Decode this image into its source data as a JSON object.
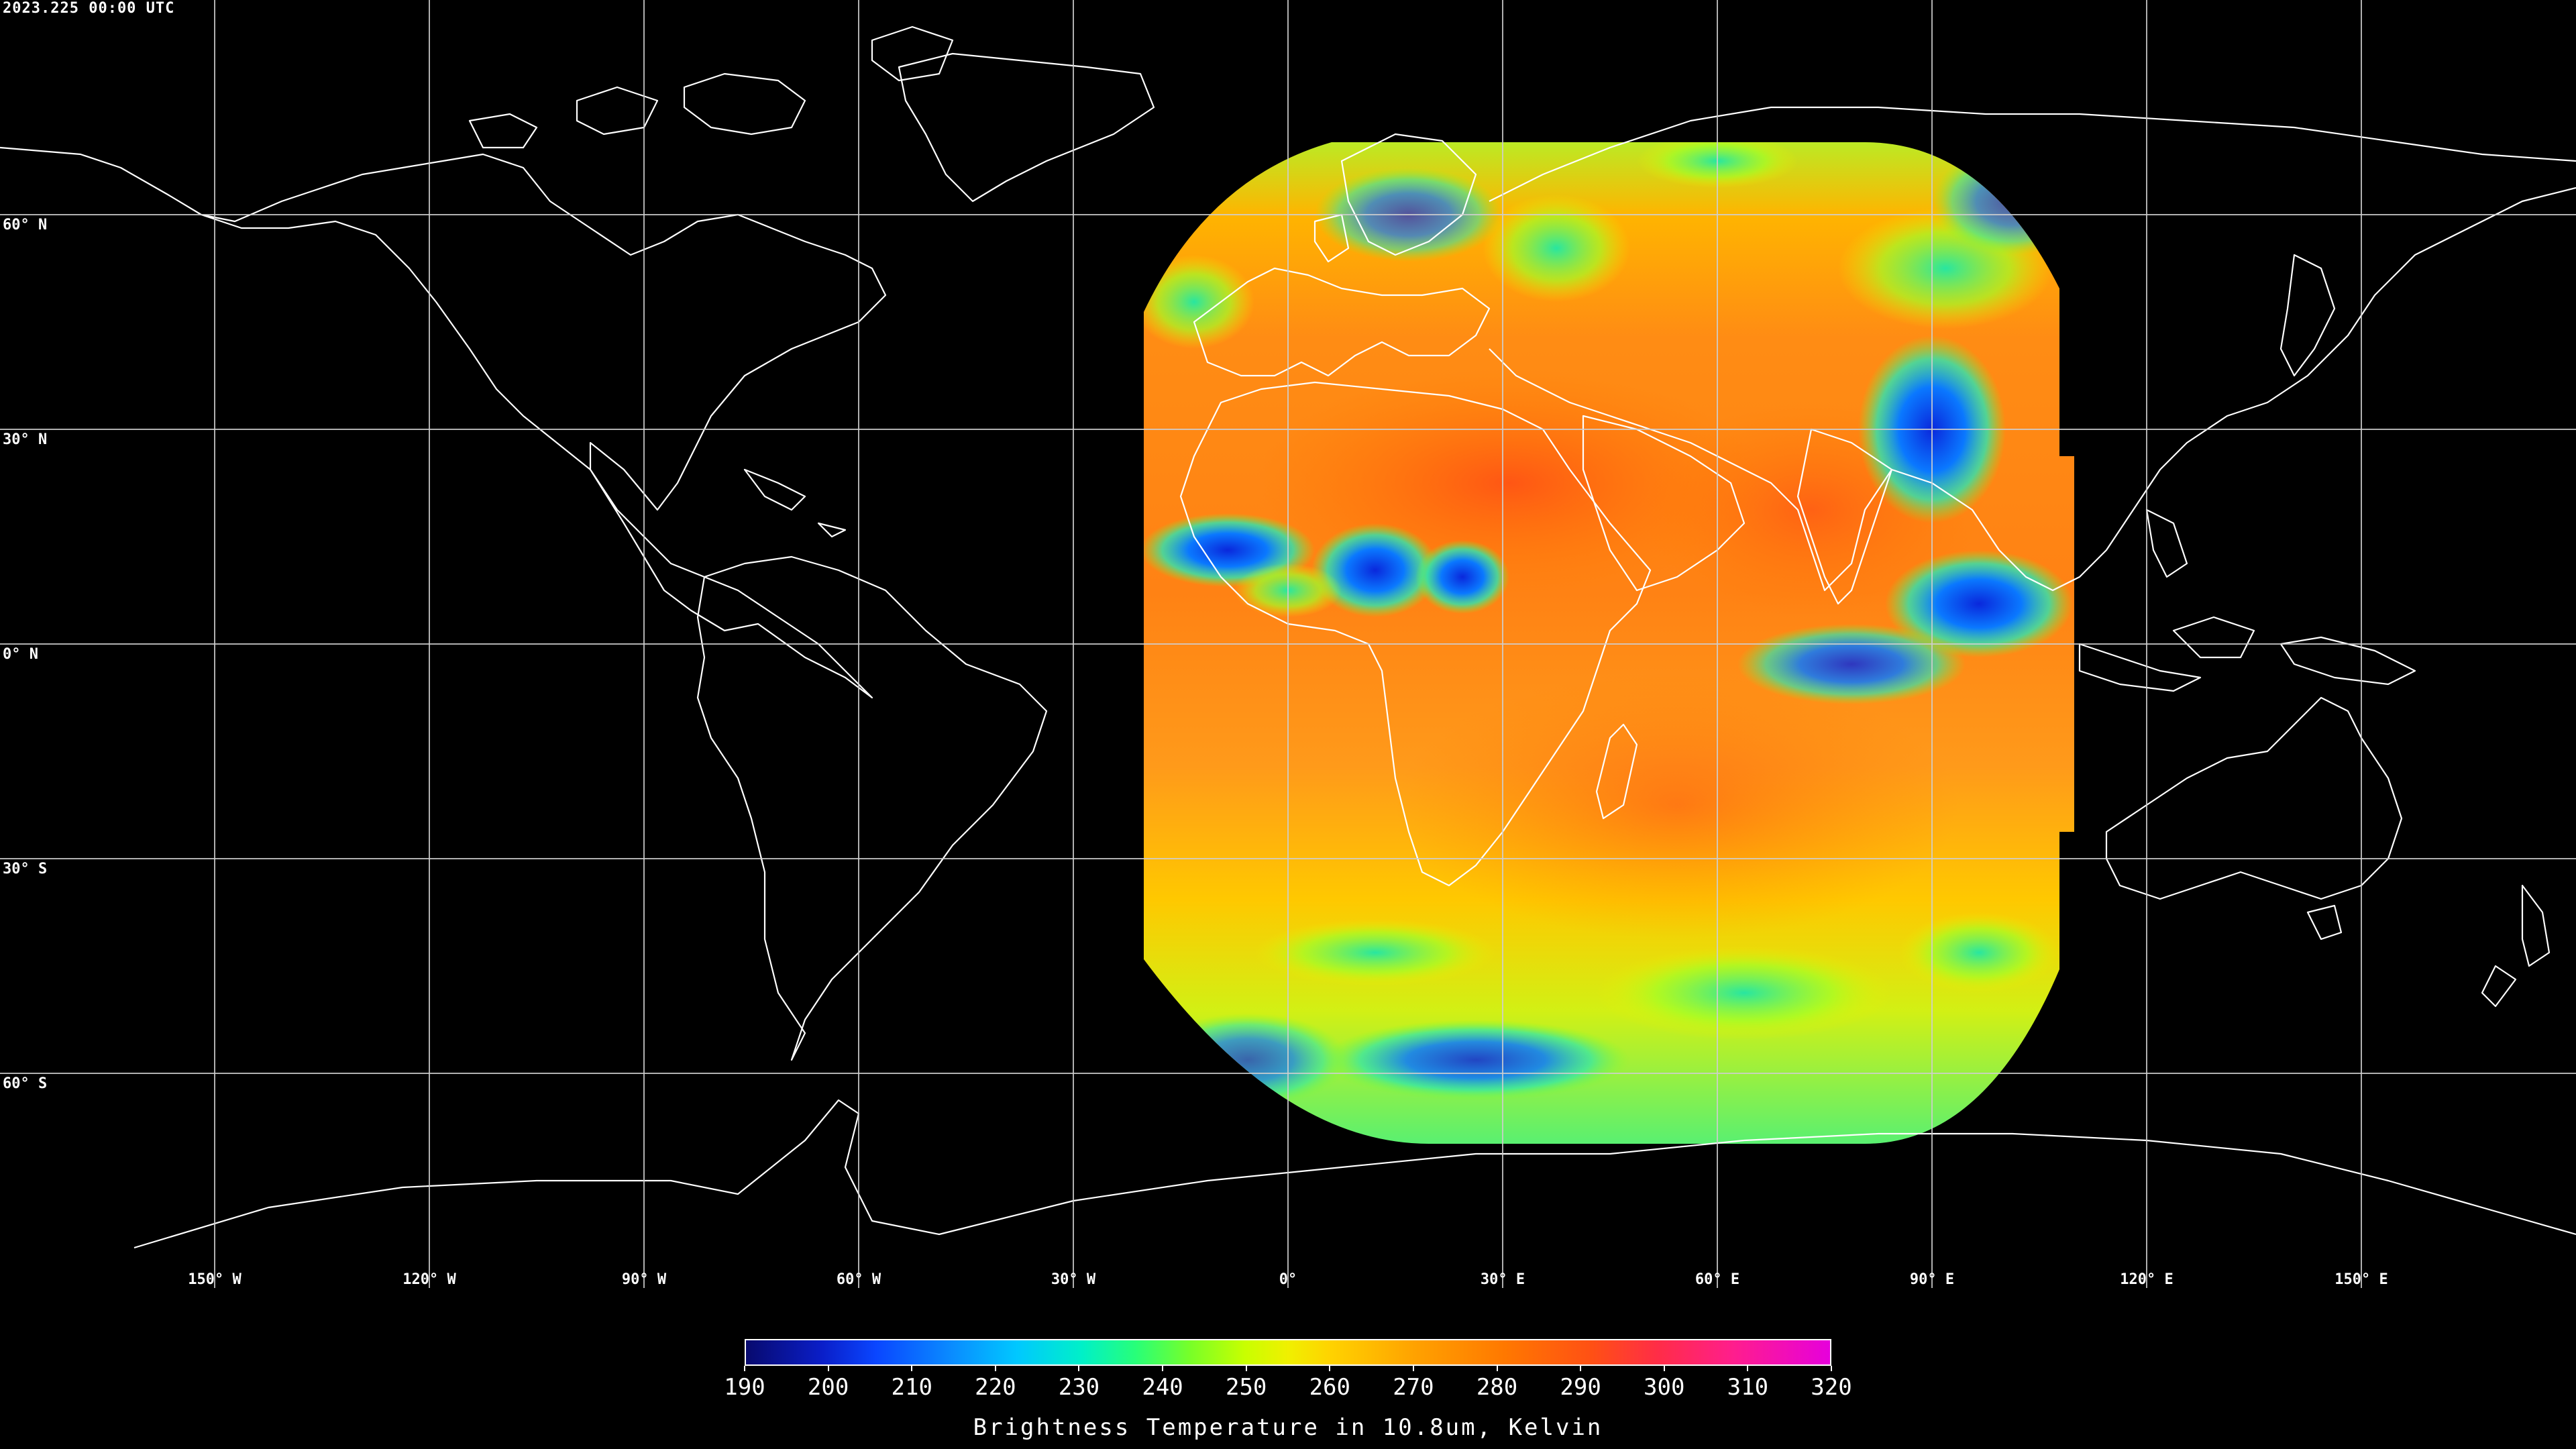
{
  "header": {
    "timestamp": "2023.225 00:00 UTC"
  },
  "map": {
    "projection": "equirectangular",
    "lon_range": [
      -180,
      180
    ],
    "lat_range": [
      -90,
      90
    ],
    "background_color": "#000000",
    "coastline_color": "#ffffff",
    "grid": true,
    "lat_lines": [
      60,
      30,
      0,
      -30,
      -60
    ],
    "lon_lines": [
      -150,
      -120,
      -90,
      -60,
      -30,
      0,
      30,
      60,
      90,
      120,
      150
    ],
    "lat_labels": [
      "60° N",
      "30° N",
      "0° N",
      "30° S",
      "60° S"
    ],
    "lon_labels": [
      "150° W",
      "120° W",
      "90° W",
      "60° W",
      "30° W",
      "0°",
      "30° E",
      "60° E",
      "90° E",
      "120° E",
      "150° E"
    ],
    "satellite_disk": {
      "lon_range": [
        -20,
        108
      ],
      "lat_range": [
        -70,
        70
      ],
      "dominant_color": "#ff8c1a"
    }
  },
  "colorbar": {
    "min": 190,
    "max": 320,
    "ticks": [
      190,
      200,
      210,
      220,
      230,
      240,
      250,
      260,
      270,
      280,
      290,
      300,
      310,
      320
    ],
    "tick_labels": [
      "190",
      "200",
      "210",
      "220",
      "230",
      "240",
      "250",
      "260",
      "270",
      "280",
      "290",
      "300",
      "310",
      "320"
    ],
    "title": "Brightness Temperature in 10.8um, Kelvin"
  }
}
